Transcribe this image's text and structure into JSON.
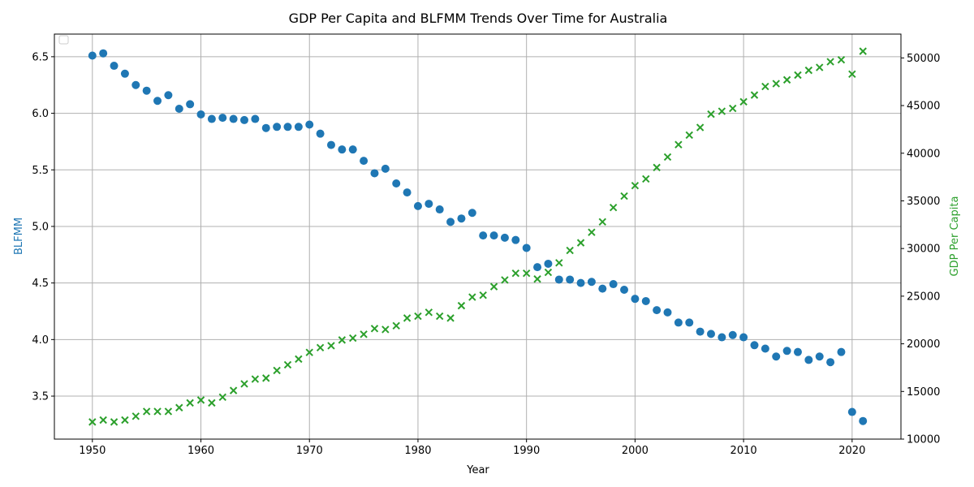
{
  "chart_data": {
    "type": "scatter",
    "title": "GDP Per Capita and BLFMM Trends Over Time for Australia",
    "xlabel": "Year",
    "ylabel_left": "BLFMM",
    "ylabel_right": "GDP Per Capita",
    "xlim": [
      1946.5,
      2024.5
    ],
    "ylim_left": [
      3.12,
      6.7
    ],
    "ylim_right": [
      10000,
      52500
    ],
    "x_ticks": [
      1950,
      1960,
      1970,
      1980,
      1990,
      2000,
      2010,
      2020
    ],
    "y_left_ticks": [
      3.5,
      4.0,
      4.5,
      5.0,
      5.5,
      6.0,
      6.5
    ],
    "y_left_tick_labels": [
      "3.5",
      "4.0",
      "4.5",
      "5.0",
      "5.5",
      "6.0",
      "6.5"
    ],
    "y_right_ticks": [
      10000,
      15000,
      20000,
      25000,
      30000,
      35000,
      40000,
      45000,
      50000
    ],
    "grid": true,
    "legend": {
      "placement": "top-left",
      "entries": []
    },
    "colors": {
      "blfmm": "#1f77b4",
      "gdp": "#2ca02c",
      "grid": "#b0b0b0"
    },
    "series": [
      {
        "name": "BLFMM",
        "axis": "left",
        "marker": "circle",
        "x": [
          1950,
          1951,
          1952,
          1953,
          1954,
          1955,
          1956,
          1957,
          1958,
          1959,
          1960,
          1961,
          1962,
          1963,
          1964,
          1965,
          1966,
          1967,
          1968,
          1969,
          1970,
          1971,
          1972,
          1973,
          1974,
          1975,
          1976,
          1977,
          1978,
          1979,
          1980,
          1981,
          1982,
          1983,
          1984,
          1985,
          1986,
          1987,
          1988,
          1989,
          1990,
          1991,
          1992,
          1993,
          1994,
          1995,
          1996,
          1997,
          1998,
          1999,
          2000,
          2001,
          2002,
          2003,
          2004,
          2005,
          2006,
          2007,
          2008,
          2009,
          2010,
          2011,
          2012,
          2013,
          2014,
          2015,
          2016,
          2017,
          2018,
          2019,
          2020,
          2021
        ],
        "y": [
          6.51,
          6.53,
          6.42,
          6.35,
          6.25,
          6.2,
          6.11,
          6.16,
          6.04,
          6.08,
          5.99,
          5.95,
          5.96,
          5.95,
          5.94,
          5.95,
          5.87,
          5.88,
          5.88,
          5.88,
          5.9,
          5.82,
          5.72,
          5.68,
          5.68,
          5.58,
          5.47,
          5.51,
          5.38,
          5.3,
          5.18,
          5.2,
          5.15,
          5.04,
          5.07,
          5.12,
          4.92,
          4.92,
          4.9,
          4.88,
          4.81,
          4.64,
          4.67,
          4.53,
          4.53,
          4.5,
          4.51,
          4.45,
          4.49,
          4.44,
          4.36,
          4.34,
          4.26,
          4.24,
          4.15,
          4.15,
          4.07,
          4.05,
          4.02,
          4.04,
          4.02,
          3.95,
          3.92,
          3.85,
          3.9,
          3.89,
          3.82,
          3.85,
          3.8,
          3.89,
          3.36,
          3.28
        ]
      },
      {
        "name": "GDP Per Capita",
        "axis": "right",
        "marker": "x",
        "x": [
          1950,
          1951,
          1952,
          1953,
          1954,
          1955,
          1956,
          1957,
          1958,
          1959,
          1960,
          1961,
          1962,
          1963,
          1964,
          1965,
          1966,
          1967,
          1968,
          1969,
          1970,
          1971,
          1972,
          1973,
          1974,
          1975,
          1976,
          1977,
          1978,
          1979,
          1980,
          1981,
          1982,
          1983,
          1984,
          1985,
          1986,
          1987,
          1988,
          1989,
          1990,
          1991,
          1992,
          1993,
          1994,
          1995,
          1996,
          1997,
          1998,
          1999,
          2000,
          2001,
          2002,
          2003,
          2004,
          2005,
          2006,
          2007,
          2008,
          2009,
          2010,
          2011,
          2012,
          2013,
          2014,
          2015,
          2016,
          2017,
          2018,
          2019,
          2020,
          2021
        ],
        "y": [
          11800,
          12000,
          11800,
          12000,
          12400,
          12900,
          12900,
          12900,
          13300,
          13800,
          14100,
          13800,
          14400,
          15100,
          15800,
          16300,
          16400,
          17200,
          17800,
          18400,
          19100,
          19600,
          19800,
          20400,
          20600,
          21000,
          21600,
          21500,
          21900,
          22700,
          22900,
          23300,
          22900,
          22700,
          24000,
          24900,
          25100,
          26000,
          26700,
          27400,
          27400,
          26800,
          27500,
          28500,
          29800,
          30600,
          31700,
          32800,
          34300,
          35500,
          36600,
          37300,
          38500,
          39600,
          40900,
          41900,
          42700,
          44100,
          44400,
          44700,
          45400,
          46100,
          47000,
          47300,
          47700,
          48200,
          48700,
          49000,
          49600,
          49800,
          48300,
          50700
        ]
      }
    ]
  }
}
